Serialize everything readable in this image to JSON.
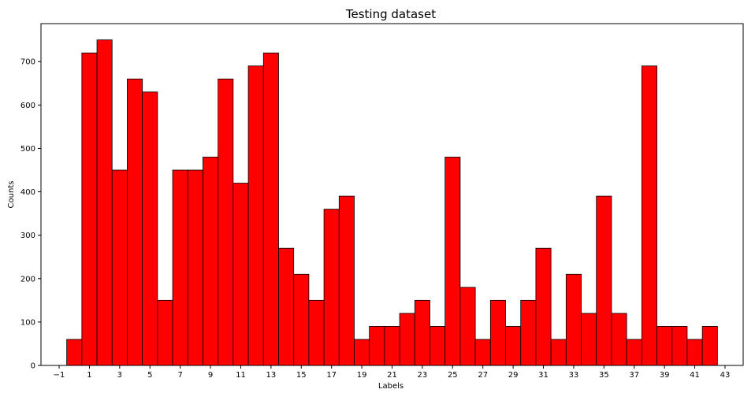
{
  "colors": {
    "bar_fill": "#ff0000",
    "bar_edge": "#000000",
    "background": "#ffffff"
  },
  "chart_data": {
    "type": "bar",
    "title": "Testing dataset",
    "xlabel": "Labels",
    "ylabel": "Counts",
    "x": [
      0,
      1,
      2,
      3,
      4,
      5,
      6,
      7,
      8,
      9,
      10,
      11,
      12,
      13,
      14,
      15,
      16,
      17,
      18,
      19,
      20,
      21,
      22,
      23,
      24,
      25,
      26,
      27,
      28,
      29,
      30,
      31,
      32,
      33,
      34,
      35,
      36,
      37,
      38,
      39,
      40,
      41,
      42
    ],
    "values": [
      60,
      720,
      750,
      450,
      660,
      630,
      150,
      450,
      450,
      480,
      660,
      420,
      690,
      720,
      270,
      210,
      150,
      360,
      390,
      60,
      90,
      90,
      120,
      150,
      90,
      480,
      180,
      60,
      150,
      90,
      150,
      270,
      60,
      210,
      120,
      390,
      120,
      60,
      690,
      90,
      90,
      60,
      90
    ],
    "xlim": [
      -2.2,
      44.2
    ],
    "ylim": [
      0,
      787.5
    ],
    "xticks": [
      -1,
      1,
      3,
      5,
      7,
      9,
      11,
      13,
      15,
      17,
      19,
      21,
      23,
      25,
      27,
      29,
      31,
      33,
      35,
      37,
      39,
      41,
      43
    ],
    "xtick_labels": [
      "−1",
      "1",
      "3",
      "5",
      "7",
      "9",
      "11",
      "13",
      "15",
      "17",
      "19",
      "21",
      "23",
      "25",
      "27",
      "29",
      "31",
      "33",
      "35",
      "37",
      "39",
      "41",
      "43"
    ],
    "yticks": [
      0,
      100,
      200,
      300,
      400,
      500,
      600,
      700
    ],
    "ytick_labels": [
      "0",
      "100",
      "200",
      "300",
      "400",
      "500",
      "600",
      "700"
    ],
    "bar_width": 1.0,
    "grid": false,
    "legend": "none"
  }
}
